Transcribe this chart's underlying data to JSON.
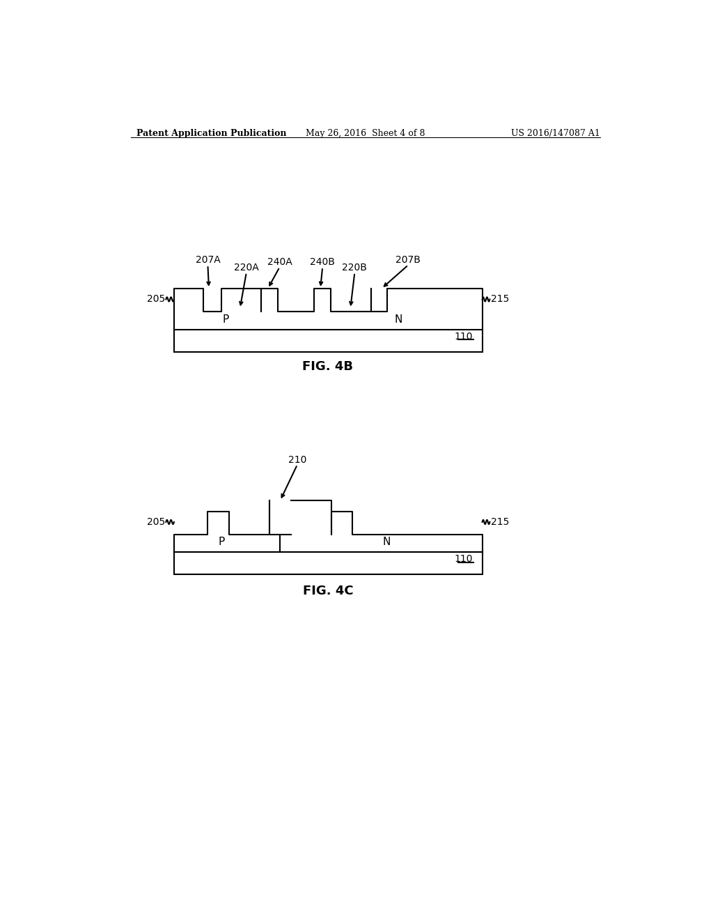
{
  "bg_color": "#ffffff",
  "line_color": "#000000",
  "line_width": 1.5,
  "header_left": "Patent Application Publication",
  "header_mid": "May 26, 2016  Sheet 4 of 8",
  "header_right": "US 2016/147087 A1",
  "fig4b_caption": "FIG. 4B",
  "fig4c_caption": "FIG. 4C"
}
